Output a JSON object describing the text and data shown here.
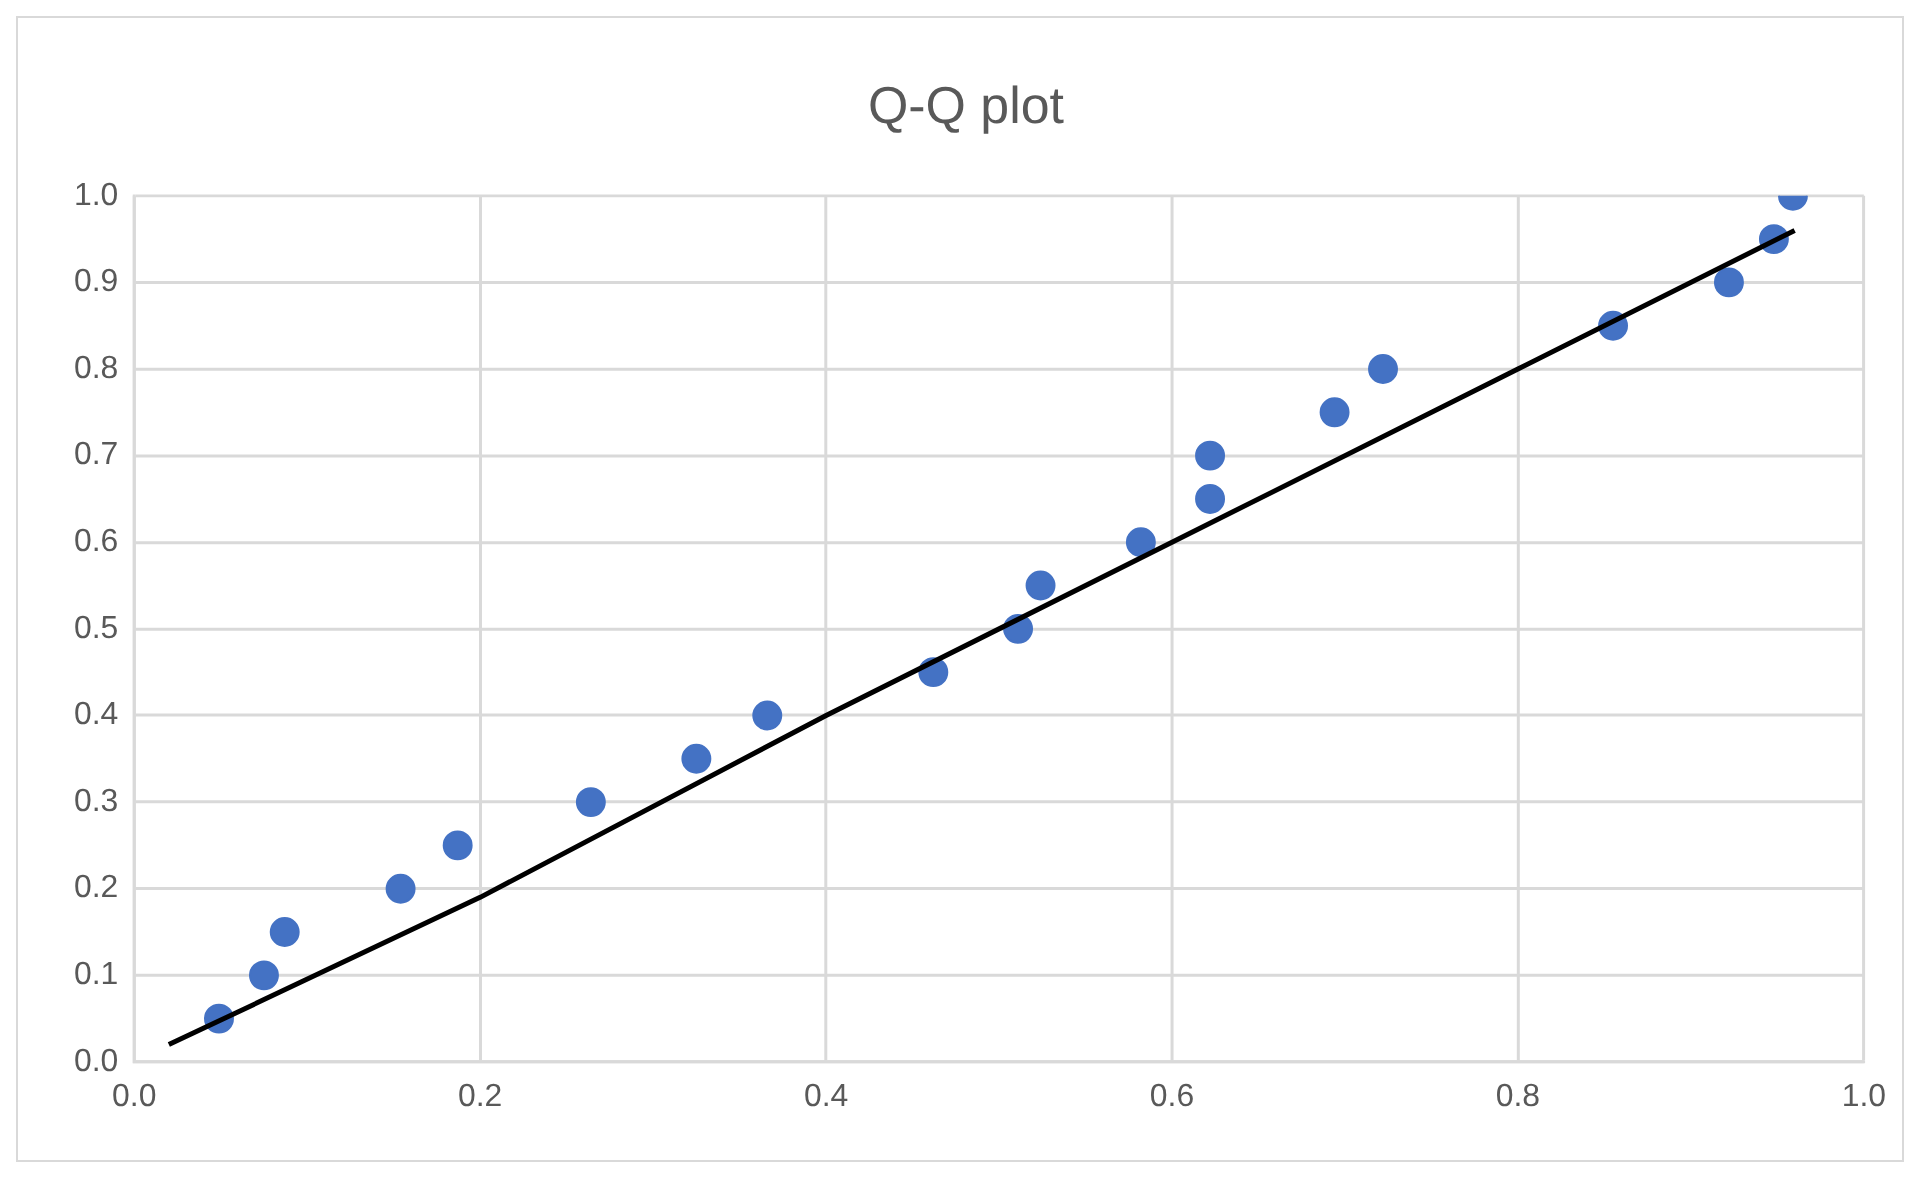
{
  "chart_data": {
    "type": "scatter",
    "title": "Q-Q plot",
    "xlim": [
      0,
      1
    ],
    "xticks": [
      {
        "value": 0,
        "label": "0.0"
      },
      0.2,
      0.4,
      0.6,
      0.8,
      {
        "value": 1,
        "label": "1.0"
      }
    ],
    "ylim": [
      0,
      1
    ],
    "yticks": [
      {
        "value": 0,
        "label": "0.0"
      },
      0.1,
      0.2,
      0.3,
      0.4,
      0.5,
      0.6,
      0.7,
      0.8,
      0.9,
      {
        "value": 1,
        "label": "1.0"
      }
    ],
    "grid": true,
    "legend": false,
    "marker": "circle",
    "series": [
      {
        "color": "#4472c4",
        "x": [
          0.049,
          0.075,
          0.087,
          0.154,
          0.187,
          0.264,
          0.325,
          0.366,
          0.462,
          0.511,
          0.524,
          0.582,
          0.622,
          0.622,
          0.694,
          0.722,
          0.855,
          0.922,
          0.948,
          0.959
        ],
        "values": [
          0.05,
          0.1,
          0.15,
          0.2,
          0.25,
          0.3,
          0.35,
          0.4,
          0.45,
          0.5,
          0.55,
          0.6,
          0.65,
          0.7,
          0.75,
          0.8,
          0.85,
          0.9,
          0.95,
          1.0
        ]
      },
      {
        "type": "line",
        "color": "#000000",
        "marker": "none",
        "x": [
          0.02,
          0.2,
          0.4,
          0.6,
          0.8,
          0.96
        ],
        "values": [
          0.02,
          0.19,
          0.4,
          0.6,
          0.8,
          0.96
        ]
      }
    ]
  }
}
